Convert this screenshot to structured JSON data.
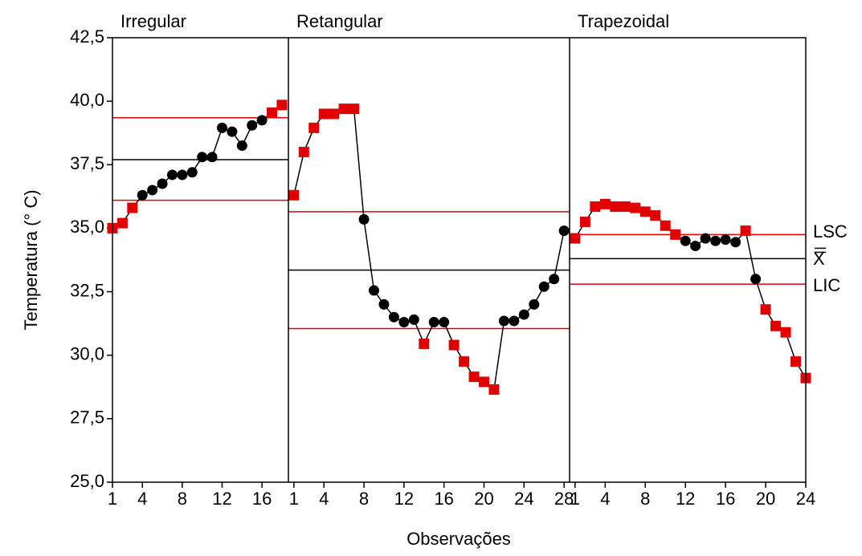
{
  "chart_data": {
    "type": "line",
    "ylabel": "Temperatura (° C)",
    "xlabel": "Observações",
    "ylim": [
      25,
      42.5
    ],
    "yticks": [
      {
        "value": 25,
        "label": "25,0"
      },
      {
        "value": 27.5,
        "label": "27,5"
      },
      {
        "value": 30,
        "label": "30,0"
      },
      {
        "value": 32.5,
        "label": "32,5"
      },
      {
        "value": 35,
        "label": "35,0"
      },
      {
        "value": 37.5,
        "label": "37,5"
      },
      {
        "value": 40,
        "label": "40,0"
      },
      {
        "value": 42.5,
        "label": "42,5"
      }
    ],
    "limit_labels": {
      "ucl": "LSC",
      "center": "X",
      "lcl": "LIC"
    },
    "line_color": "#000000",
    "limit_color": "#e00000",
    "panels": [
      {
        "title": "Irregular",
        "xlim": [
          1,
          18.65
        ],
        "xticks": [
          1,
          4,
          8,
          12,
          16
        ],
        "x": [
          1,
          2,
          3,
          4,
          5,
          6,
          7,
          8,
          9,
          10,
          11,
          12,
          13,
          14,
          15,
          16,
          17,
          18
        ],
        "values": [
          35.0,
          35.2,
          35.8,
          36.3,
          36.5,
          36.75,
          37.1,
          37.1,
          37.2,
          37.8,
          37.8,
          38.95,
          38.8,
          38.25,
          39.05,
          39.25,
          39.55,
          39.85
        ],
        "point_colors": [
          "#e00000",
          "#e00000",
          "#e00000",
          "#000000",
          "#000000",
          "#000000",
          "#000000",
          "#000000",
          "#000000",
          "#000000",
          "#000000",
          "#000000",
          "#000000",
          "#000000",
          "#000000",
          "#000000",
          "#e00000",
          "#e00000"
        ],
        "center": 37.7,
        "ucl": 39.35,
        "lcl": 36.1
      },
      {
        "title": "Retangular",
        "xlim": [
          0.45,
          28.55
        ],
        "xticks": [
          1,
          4,
          8,
          12,
          16,
          20,
          24,
          28
        ],
        "x": [
          1,
          2,
          3,
          4,
          5,
          6,
          7,
          8,
          9,
          10,
          11,
          12,
          13,
          14,
          15,
          16,
          17,
          18,
          19,
          20,
          21,
          22,
          23,
          24,
          25,
          26,
          27,
          28
        ],
        "values": [
          36.3,
          38.0,
          38.95,
          39.5,
          39.5,
          39.7,
          39.7,
          35.35,
          32.55,
          32.0,
          31.5,
          31.3,
          31.4,
          30.45,
          31.3,
          31.3,
          30.4,
          29.75,
          29.15,
          28.95,
          28.65,
          31.35,
          31.35,
          31.6,
          32.0,
          32.7,
          33.0,
          34.9
        ],
        "point_colors": [
          "#e00000",
          "#e00000",
          "#e00000",
          "#e00000",
          "#e00000",
          "#e00000",
          "#e00000",
          "#000000",
          "#000000",
          "#000000",
          "#000000",
          "#000000",
          "#000000",
          "#e00000",
          "#000000",
          "#000000",
          "#e00000",
          "#e00000",
          "#e00000",
          "#e00000",
          "#e00000",
          "#000000",
          "#000000",
          "#000000",
          "#000000",
          "#000000",
          "#000000",
          "#000000"
        ],
        "center": 33.35,
        "ucl": 35.65,
        "lcl": 31.05
      },
      {
        "title": "Trapezoidal",
        "xlim": [
          0.45,
          24
        ],
        "xticks": [
          1,
          4,
          8,
          12,
          16,
          20,
          24
        ],
        "x": [
          1,
          2,
          3,
          4,
          5,
          6,
          7,
          8,
          9,
          10,
          11,
          12,
          13,
          14,
          15,
          16,
          17,
          18,
          19,
          20,
          21,
          22,
          23,
          24
        ],
        "values": [
          34.6,
          35.25,
          35.85,
          35.95,
          35.85,
          35.85,
          35.8,
          35.65,
          35.5,
          35.1,
          34.75,
          34.5,
          34.3,
          34.6,
          34.5,
          34.55,
          34.45,
          34.9,
          33.0,
          31.8,
          31.15,
          30.9,
          29.75,
          29.1
        ],
        "point_colors": [
          "#e00000",
          "#e00000",
          "#e00000",
          "#e00000",
          "#e00000",
          "#e00000",
          "#e00000",
          "#e00000",
          "#e00000",
          "#e00000",
          "#e00000",
          "#000000",
          "#000000",
          "#000000",
          "#000000",
          "#000000",
          "#000000",
          "#e00000",
          "#000000",
          "#e00000",
          "#e00000",
          "#e00000",
          "#e00000",
          "#e00000"
        ],
        "center": 33.8,
        "ucl": 34.75,
        "lcl": 32.8
      }
    ]
  }
}
